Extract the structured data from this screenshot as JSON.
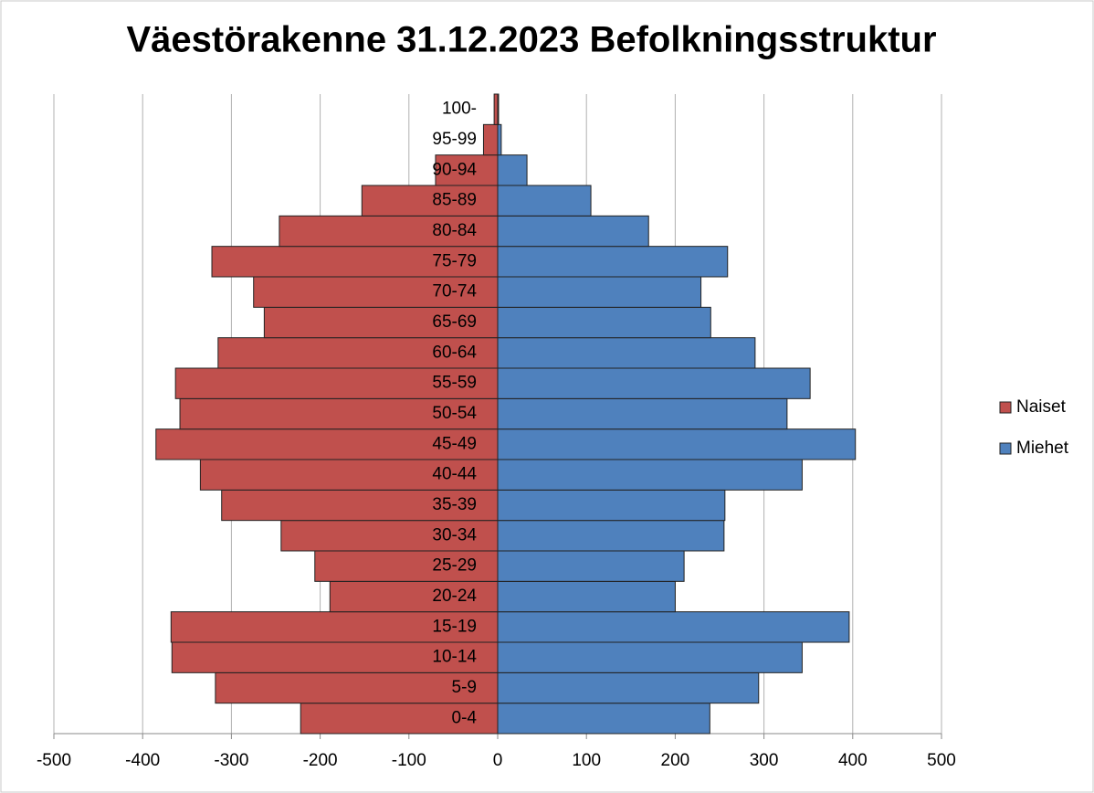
{
  "chart_data": {
    "type": "bar",
    "orientation": "horizontal",
    "title": "Väestörakenne 31.12.2023 Befolkningsstruktur",
    "categories": [
      "0-4",
      "5-9",
      "10-14",
      "15-19",
      "20-24",
      "25-29",
      "30-34",
      "35-39",
      "40-44",
      "45-49",
      "50-54",
      "55-59",
      "60-64",
      "65-69",
      "70-74",
      "75-79",
      "80-84",
      "85-89",
      "90-94",
      "95-99",
      "100-"
    ],
    "series": [
      {
        "name": "Naiset",
        "color": "#c0504d",
        "values": [
          -222,
          -318,
          -367,
          -368,
          -189,
          -206,
          -244,
          -311,
          -335,
          -385,
          -358,
          -363,
          -315,
          -263,
          -275,
          -322,
          -246,
          -153,
          -70,
          -16,
          -4
        ]
      },
      {
        "name": "Miehet",
        "color": "#4f81bd",
        "values": [
          239,
          294,
          343,
          396,
          200,
          210,
          255,
          256,
          343,
          403,
          326,
          352,
          290,
          240,
          229,
          259,
          170,
          105,
          33,
          4,
          1
        ]
      }
    ],
    "xlim": [
      -500,
      500
    ],
    "xticks": [
      -500,
      -400,
      -300,
      -200,
      -100,
      0,
      100,
      200,
      300,
      400,
      500
    ],
    "grid": true,
    "legend": "right"
  }
}
